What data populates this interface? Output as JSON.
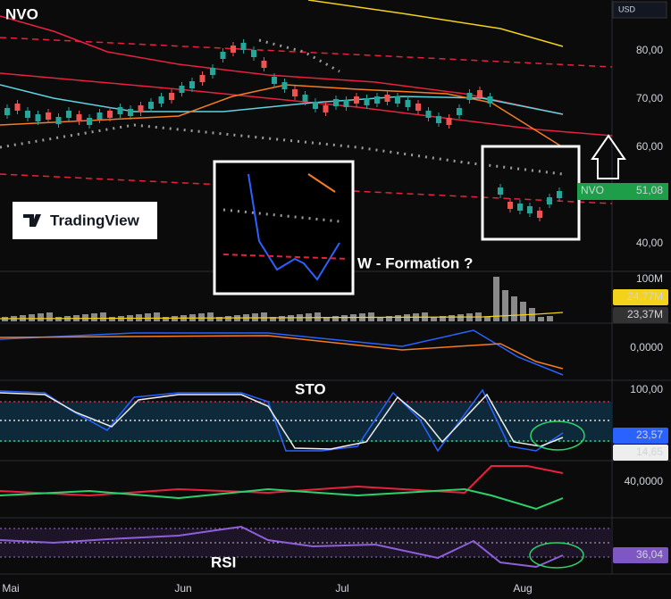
{
  "header": {
    "symbol": "NVO",
    "currency": "USD"
  },
  "logo": "TradingView",
  "price_axis": [
    "80,00",
    "70,00",
    "60,00",
    "40,00"
  ],
  "last_price": {
    "symbol": "NVO",
    "value": "51,08"
  },
  "volume_axis": [
    "100M"
  ],
  "volume_labels": [
    "24,77M",
    "23,37M"
  ],
  "macd_axis": [
    "0,0000"
  ],
  "sto": {
    "title": "STO",
    "axis": [
      "100,00"
    ],
    "labels": [
      "23,57",
      "14,65"
    ]
  },
  "dmi_axis": [
    "40,0000"
  ],
  "rsi": {
    "title": "RSI",
    "label": "36,04"
  },
  "annotation": "W - Formation ?",
  "time_axis": [
    "Mai",
    "Jun",
    "Jul",
    "Aug"
  ]
}
